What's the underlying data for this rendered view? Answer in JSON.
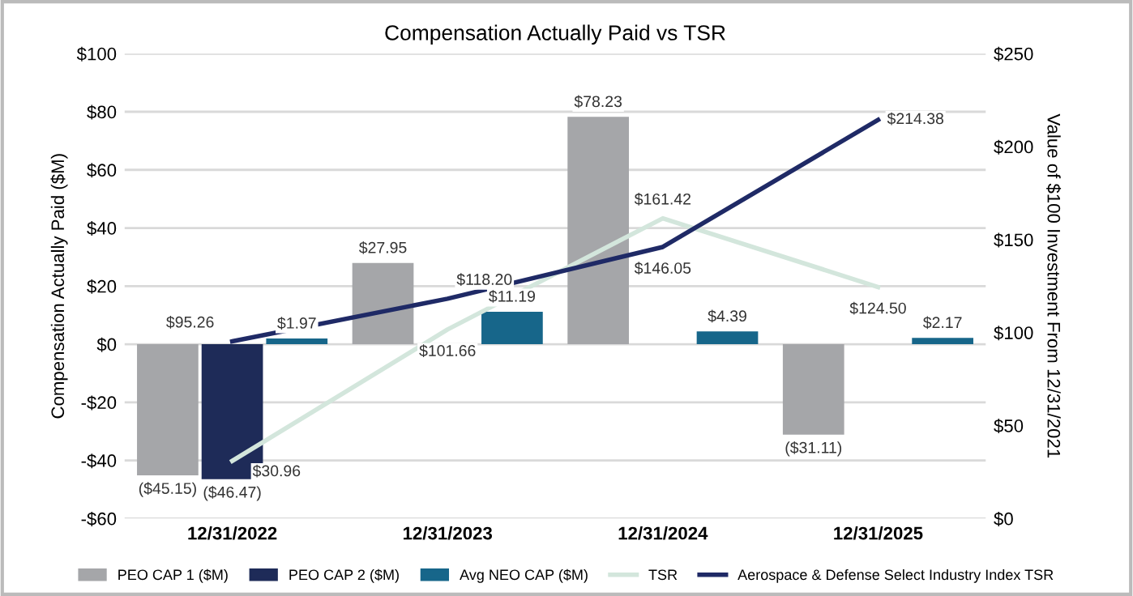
{
  "chart_data": {
    "type": "bar",
    "title": "Compensation Actually Paid vs TSR",
    "ylabel": "Compensation Actually Paid ($M)",
    "y2label": "Value of $100 Investment From 12/31/2021",
    "categories": [
      "12/31/2022",
      "12/31/2023",
      "12/31/2024",
      "12/31/2025"
    ],
    "series": [
      {
        "name": "PEO CAP 1 ($M)",
        "color": "#a5a6a9",
        "values": [
          -45.15,
          27.95,
          78.23,
          -31.11
        ],
        "value_labels": [
          "($45.15)",
          "$27.95",
          "$78.23",
          "($31.11)"
        ]
      },
      {
        "name": "PEO CAP 2 ($M)",
        "color": "#1e2b58",
        "values": [
          -46.47,
          null,
          null,
          null
        ],
        "value_labels": [
          "($46.47)",
          null,
          null,
          null
        ]
      },
      {
        "name": "Avg NEO CAP ($M)",
        "color": "#17668a",
        "values": [
          1.97,
          11.19,
          4.39,
          2.17
        ],
        "value_labels": [
          "$1.97",
          "$11.19",
          "$4.39",
          "$2.17"
        ]
      },
      {
        "name": "TSR",
        "type": "line",
        "axis": "y2",
        "color": "#d3e6dc",
        "values": [
          30.96,
          101.66,
          161.42,
          124.5
        ],
        "value_labels": [
          "$30.96",
          "$101.66",
          "$161.42",
          "$124.50"
        ]
      },
      {
        "name": "Aerospace & Defense Select Industry Index TSR",
        "type": "line",
        "axis": "y2",
        "color": "#1f2a66",
        "values": [
          95.26,
          118.2,
          146.05,
          214.38
        ],
        "value_labels": [
          "$95.26",
          "$118.20",
          "$146.05",
          "$214.38"
        ]
      }
    ],
    "ylim": [
      -60,
      100
    ],
    "yticks": [
      {
        "value": -60,
        "label": "-$60"
      },
      {
        "value": -40,
        "label": "-$40"
      },
      {
        "value": -20,
        "label": "-$20"
      },
      {
        "value": 0,
        "label": "$0"
      },
      {
        "value": 20,
        "label": "$20"
      },
      {
        "value": 40,
        "label": "$40"
      },
      {
        "value": 60,
        "label": "$60"
      },
      {
        "value": 80,
        "label": "$80"
      },
      {
        "value": 100,
        "label": "$100"
      }
    ],
    "y2lim": [
      0,
      250
    ],
    "y2ticks": [
      {
        "value": 0,
        "label": "$0"
      },
      {
        "value": 50,
        "label": "$50"
      },
      {
        "value": 100,
        "label": "$100"
      },
      {
        "value": 150,
        "label": "$150"
      },
      {
        "value": 200,
        "label": "$200"
      },
      {
        "value": 250,
        "label": "$250"
      }
    ],
    "grid": "y",
    "legend": "bottom",
    "marker": "none",
    "line_style": "solid"
  }
}
